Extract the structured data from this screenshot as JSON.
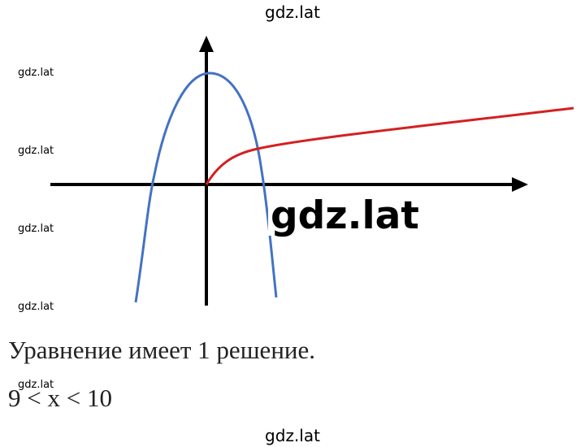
{
  "watermarks": [
    "gdz.lat",
    "gdz.lat",
    "gdz.lat",
    "gdz.lat",
    "gdz.lat",
    "gdz.lat",
    "gdz.lat",
    "gdz.lat"
  ],
  "text": {
    "line1": "Уравнение имеет 1 решение.",
    "line2": "9 < x < 10"
  }
}
